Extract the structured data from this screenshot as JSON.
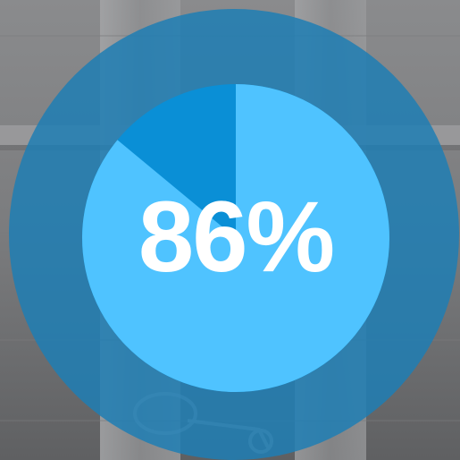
{
  "progress": {
    "percent_text": "86%",
    "value_percent": 86
  },
  "colors": {
    "outer_ring": "#1f7eb4",
    "filled": "#4fc3ff",
    "remaining": "#0a8fd6",
    "text": "#ffffff"
  },
  "icons": {
    "background": "door-latch-photo"
  }
}
